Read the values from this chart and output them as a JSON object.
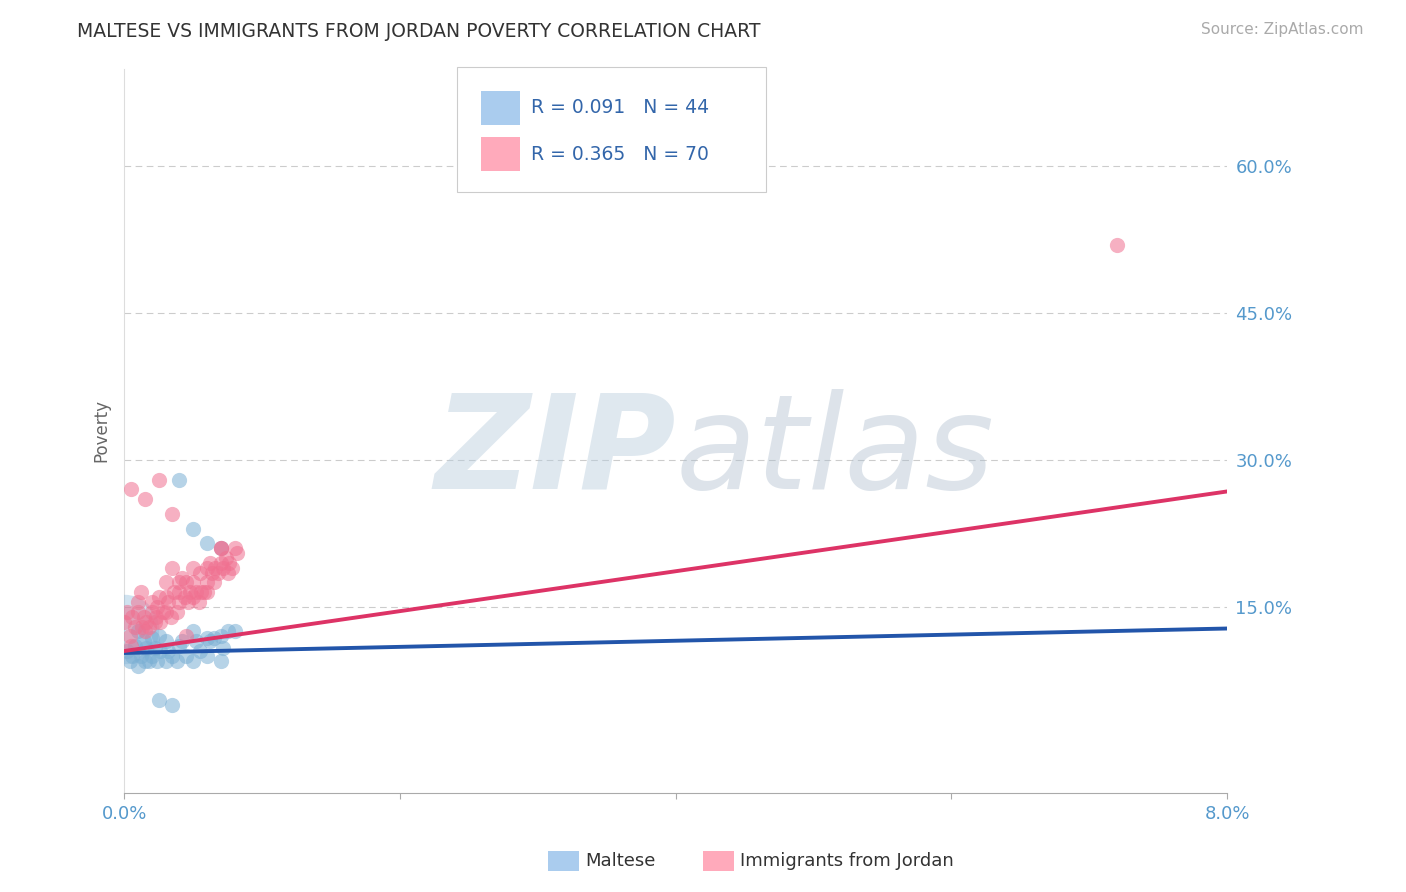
{
  "title": "MALTESE VS IMMIGRANTS FROM JORDAN POVERTY CORRELATION CHART",
  "source": "Source: ZipAtlas.com",
  "ylabel": "Poverty",
  "yticks": [
    0.0,
    0.15,
    0.3,
    0.45,
    0.6
  ],
  "ytick_labels": [
    "",
    "15.0%",
    "30.0%",
    "45.0%",
    "60.0%"
  ],
  "xlim": [
    0.0,
    0.08
  ],
  "ylim": [
    -0.04,
    0.7
  ],
  "series1_name": "Maltese",
  "series1_color": "#7BAFD4",
  "series1_R": 0.091,
  "series1_N": 44,
  "series1_x": [
    0.0002,
    0.0004,
    0.0006,
    0.0008,
    0.001,
    0.001,
    0.0012,
    0.0014,
    0.0015,
    0.0016,
    0.0018,
    0.002,
    0.002,
    0.0022,
    0.0024,
    0.0025,
    0.0026,
    0.003,
    0.003,
    0.0032,
    0.0035,
    0.0038,
    0.004,
    0.0042,
    0.0045,
    0.005,
    0.005,
    0.0052,
    0.0055,
    0.006,
    0.006,
    0.0062,
    0.0065,
    0.007,
    0.007,
    0.0072,
    0.0075,
    0.008,
    0.004,
    0.005,
    0.006,
    0.007,
    0.0025,
    0.0035
  ],
  "series1_y": [
    0.105,
    0.095,
    0.1,
    0.11,
    0.125,
    0.09,
    0.1,
    0.115,
    0.095,
    0.108,
    0.095,
    0.118,
    0.1,
    0.108,
    0.095,
    0.12,
    0.105,
    0.095,
    0.115,
    0.105,
    0.1,
    0.095,
    0.11,
    0.115,
    0.1,
    0.125,
    0.095,
    0.115,
    0.105,
    0.118,
    0.1,
    0.115,
    0.118,
    0.12,
    0.095,
    0.108,
    0.125,
    0.125,
    0.28,
    0.23,
    0.215,
    0.21,
    0.055,
    0.05
  ],
  "series1_big_x": [
    0.0
  ],
  "series1_big_y": [
    0.128
  ],
  "series2_name": "Immigrants from Jordan",
  "series2_color": "#F07090",
  "series2_R": 0.365,
  "series2_N": 70,
  "series2_x": [
    0.0,
    0.0002,
    0.0004,
    0.0005,
    0.0006,
    0.0008,
    0.001,
    0.001,
    0.0012,
    0.0013,
    0.0014,
    0.0015,
    0.0016,
    0.0018,
    0.002,
    0.002,
    0.0022,
    0.0023,
    0.0024,
    0.0025,
    0.0026,
    0.0028,
    0.003,
    0.003,
    0.003,
    0.0032,
    0.0034,
    0.0035,
    0.0036,
    0.0038,
    0.004,
    0.004,
    0.004,
    0.0042,
    0.0044,
    0.0045,
    0.0046,
    0.0048,
    0.005,
    0.005,
    0.005,
    0.0052,
    0.0054,
    0.0055,
    0.0056,
    0.0058,
    0.006,
    0.006,
    0.006,
    0.0062,
    0.0064,
    0.0065,
    0.0066,
    0.0068,
    0.007,
    0.007,
    0.007,
    0.0072,
    0.0074,
    0.0075,
    0.0076,
    0.0078,
    0.008,
    0.0082,
    0.0005,
    0.0015,
    0.0025,
    0.0035,
    0.0045,
    0.072
  ],
  "series2_y": [
    0.135,
    0.145,
    0.12,
    0.11,
    0.14,
    0.13,
    0.145,
    0.155,
    0.165,
    0.13,
    0.14,
    0.125,
    0.135,
    0.13,
    0.145,
    0.155,
    0.135,
    0.14,
    0.15,
    0.16,
    0.135,
    0.145,
    0.145,
    0.16,
    0.175,
    0.155,
    0.14,
    0.19,
    0.165,
    0.145,
    0.165,
    0.175,
    0.155,
    0.18,
    0.16,
    0.175,
    0.155,
    0.165,
    0.175,
    0.16,
    0.19,
    0.165,
    0.155,
    0.185,
    0.165,
    0.165,
    0.19,
    0.175,
    0.165,
    0.195,
    0.185,
    0.175,
    0.19,
    0.185,
    0.21,
    0.21,
    0.195,
    0.19,
    0.2,
    0.185,
    0.195,
    0.19,
    0.21,
    0.205,
    0.27,
    0.26,
    0.28,
    0.245,
    0.12,
    0.52
  ],
  "trendline1_x": [
    0.0,
    0.08
  ],
  "trendline1_y": [
    0.103,
    0.128
  ],
  "trendline2_x": [
    0.0,
    0.08
  ],
  "trendline2_y": [
    0.105,
    0.268
  ],
  "watermark_zip": "ZIP",
  "watermark_atlas": "atlas",
  "background_color": "#ffffff",
  "grid_color": "#cccccc",
  "title_color": "#333333",
  "axis_color": "#5599CC",
  "legend_R_color": "#3366AA"
}
